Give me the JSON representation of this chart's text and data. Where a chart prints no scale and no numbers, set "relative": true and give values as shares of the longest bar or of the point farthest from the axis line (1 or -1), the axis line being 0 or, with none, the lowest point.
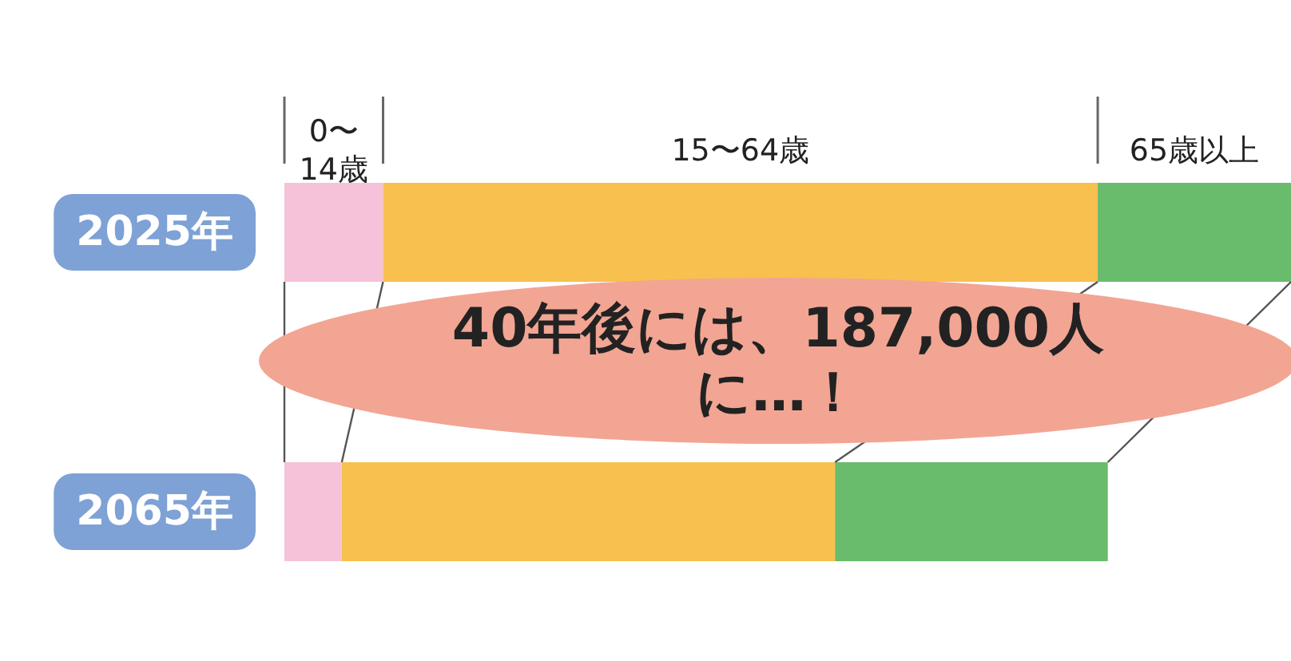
{
  "chart_data": {
    "type": "bar",
    "orientation": "horizontal",
    "stacked": true,
    "relative": true,
    "categories": [
      "2025年",
      "2065年"
    ],
    "series": [
      {
        "name": "0〜14歳",
        "color": "#f5c2d9",
        "values": [
          0.098,
          0.057
        ]
      },
      {
        "name": "15〜64歳",
        "color": "#f8c04e",
        "values": [
          0.71,
          0.49
        ]
      },
      {
        "name": "65歳以上",
        "color": "#68bc6c",
        "values": [
          0.192,
          0.271
        ]
      }
    ],
    "annotations": [
      "40年後には、187,000人に…！"
    ],
    "legend": false
  }
}
